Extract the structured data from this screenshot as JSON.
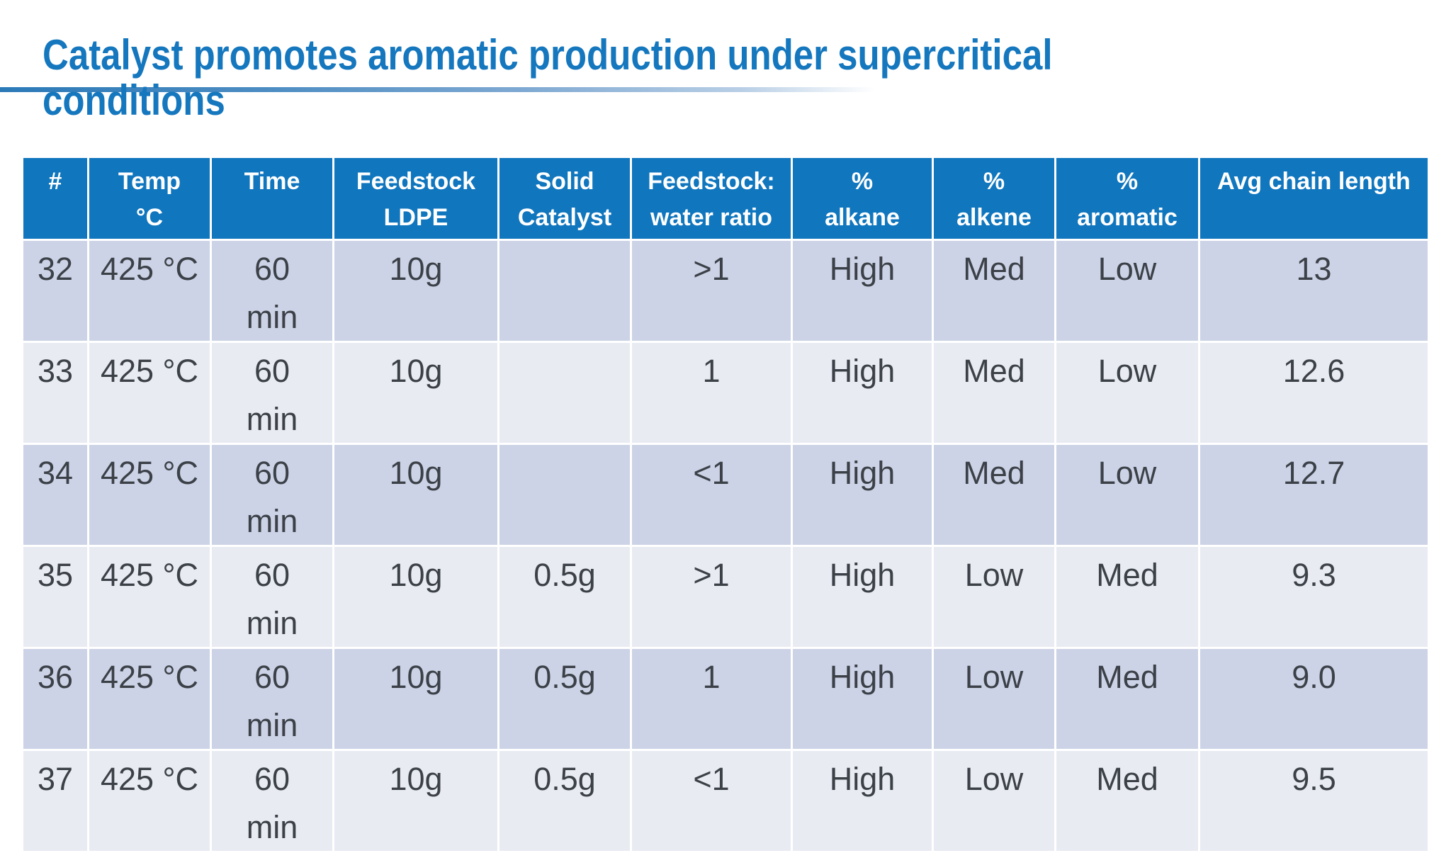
{
  "title": "Catalyst promotes aromatic production under supercritical conditions",
  "colors": {
    "title_text": "#1577be",
    "accent_rule_start": "#2b7ab8",
    "accent_rule_end": "#ffffff",
    "table_header_bg": "#1076be",
    "table_header_text": "#ffffff",
    "row_band_dark": "#ccd3e6",
    "row_band_light": "#e9ebf3",
    "cell_text": "#3c4148"
  },
  "table": {
    "columns": [
      "#",
      "Temp\n°C",
      "Time",
      "Feedstock\nLDPE",
      "Solid\nCatalyst",
      "Feedstock:\nwater ratio",
      "%\nalkane",
      "%\nalkene",
      "%\naromatic",
      "Avg chain length"
    ],
    "rows": [
      [
        "32",
        "425 °C",
        "60\nmin",
        "10g",
        "",
        ">1",
        "High",
        "Med",
        "Low",
        "13"
      ],
      [
        "33",
        "425 °C",
        "60\nmin",
        "10g",
        "",
        "1",
        "High",
        "Med",
        "Low",
        "12.6"
      ],
      [
        "34",
        "425 °C",
        "60\nmin",
        "10g",
        "",
        "<1",
        "High",
        "Med",
        "Low",
        "12.7"
      ],
      [
        "35",
        "425 °C",
        "60\nmin",
        "10g",
        "0.5g",
        ">1",
        "High",
        "Low",
        "Med",
        "9.3"
      ],
      [
        "36",
        "425 °C",
        "60\nmin",
        "10g",
        "0.5g",
        "1",
        "High",
        "Low",
        "Med",
        "9.0"
      ],
      [
        "37",
        "425 °C",
        "60\nmin",
        "10g",
        "0.5g",
        "<1",
        "High",
        "Low",
        "Med",
        "9.5"
      ]
    ]
  }
}
